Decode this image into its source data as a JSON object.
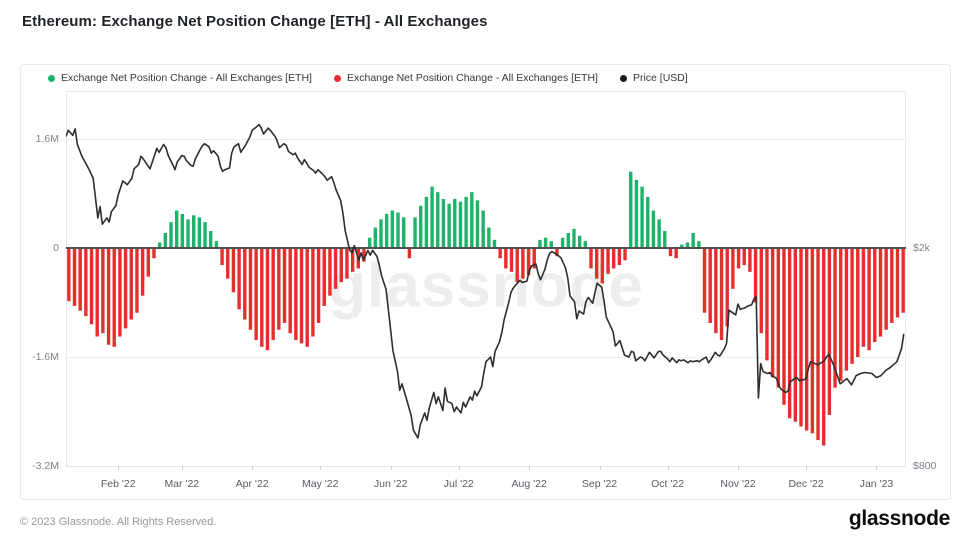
{
  "page": {
    "title": "Ethereum: Exchange Net Position Change [ETH] - All Exchanges",
    "watermark": "glassnode",
    "footer": {
      "copyright": "© 2023 Glassnode. All Rights Reserved.",
      "logo": "glassnode"
    }
  },
  "legend": {
    "items": [
      {
        "label": "Exchange Net Position Change - All Exchanges [ETH]",
        "color": "#1db36a"
      },
      {
        "label": "Exchange Net Position Change - All Exchanges [ETH]",
        "color": "#e62e2e"
      },
      {
        "label": "Price [USD]",
        "color": "#1a1a1a"
      }
    ]
  },
  "chart_data": {
    "type": "bar",
    "title": "Ethereum: Exchange Net Position Change [ETH] - All Exchanges",
    "bar_series_name": "Exchange Net Position Change - All Exchanges [ETH]",
    "bar_unit": "million ETH",
    "bar_positive_color": "#1db36a",
    "bar_negative_color": "#e62e2e",
    "price_series_name": "Price [USD]",
    "price_color": "#2e2e2e",
    "zero_line_color": "#515151",
    "grid_color": "#ededed",
    "axis_line_color": "#e3e3e3",
    "tick_color": "#c9ced6",
    "days_total": 370,
    "x_start_label_hint": "chart spans ~Jan 8 2022 to ~Jan 13 2023, daily bars",
    "left_axis": {
      "range": [
        -3.2,
        1.6
      ],
      "ticks": [
        {
          "label": "1.6M",
          "value": 1.6
        },
        {
          "label": "0",
          "value": 0
        },
        {
          "label": "-1.6M",
          "value": -1.6
        },
        {
          "label": "-3.2M",
          "value": -3.2
        }
      ]
    },
    "right_axis": {
      "scale": "log",
      "ticks": [
        {
          "label": "$2k",
          "value": 2000
        },
        {
          "label": "$800",
          "value": 800
        }
      ]
    },
    "x_axis": {
      "months": [
        {
          "label": "Feb '22",
          "day": 23
        },
        {
          "label": "Mar '22",
          "day": 51
        },
        {
          "label": "Apr '22",
          "day": 82
        },
        {
          "label": "May '22",
          "day": 112
        },
        {
          "label": "Jun '22",
          "day": 143
        },
        {
          "label": "Jul '22",
          "day": 173
        },
        {
          "label": "Aug '22",
          "day": 204
        },
        {
          "label": "Sep '22",
          "day": 235
        },
        {
          "label": "Oct '22",
          "day": 265
        },
        {
          "label": "Nov '22",
          "day": 296
        },
        {
          "label": "Dec '22",
          "day": 326
        },
        {
          "label": "Jan '23",
          "day": 357
        }
      ]
    },
    "bars_interval_days": 2.5,
    "bars": [
      -0.78,
      -0.85,
      -0.92,
      -1.0,
      -1.12,
      -1.3,
      -1.25,
      -1.42,
      -1.45,
      -1.3,
      -1.18,
      -1.05,
      -0.95,
      -0.7,
      -0.42,
      -0.15,
      0.08,
      0.22,
      0.38,
      0.55,
      0.5,
      0.42,
      0.48,
      0.45,
      0.38,
      0.25,
      0.1,
      -0.25,
      -0.45,
      -0.65,
      -0.9,
      -1.05,
      -1.2,
      -1.35,
      -1.45,
      -1.5,
      -1.35,
      -1.2,
      -1.1,
      -1.25,
      -1.35,
      -1.4,
      -1.45,
      -1.3,
      -1.1,
      -0.85,
      -0.7,
      -0.6,
      -0.5,
      -0.45,
      -0.35,
      -0.3,
      -0.2,
      0.15,
      0.3,
      0.42,
      0.5,
      0.55,
      0.52,
      0.45,
      -0.15,
      0.45,
      0.62,
      0.75,
      0.9,
      0.82,
      0.72,
      0.65,
      0.72,
      0.68,
      0.75,
      0.82,
      0.7,
      0.55,
      0.3,
      0.12,
      -0.15,
      -0.3,
      -0.35,
      -0.5,
      -0.45,
      -0.4,
      -0.3,
      0.12,
      0.15,
      0.1,
      -0.12,
      0.15,
      0.22,
      0.28,
      0.18,
      0.1,
      -0.3,
      -0.45,
      -0.52,
      -0.38,
      -0.3,
      -0.25,
      -0.18,
      1.12,
      1.0,
      0.9,
      0.75,
      0.55,
      0.42,
      0.25,
      -0.12,
      -0.15,
      0.05,
      0.08,
      0.22,
      0.1,
      -0.95,
      -1.1,
      -1.25,
      -1.35,
      -1.15,
      -0.6,
      -0.3,
      -0.25,
      -0.35,
      -0.8,
      -1.25,
      -1.65,
      -1.9,
      -2.05,
      -2.3,
      -2.5,
      -2.55,
      -2.62,
      -2.68,
      -2.72,
      -2.82,
      -2.9,
      -2.45,
      -2.05,
      -1.95,
      -1.8,
      -1.7,
      -1.6,
      -1.45,
      -1.5,
      -1.38,
      -1.3,
      -1.2,
      -1.1,
      -1.02,
      -0.95
    ],
    "price": [
      [
        0,
        3200
      ],
      [
        1,
        3280
      ],
      [
        3,
        3210
      ],
      [
        4,
        3300
      ],
      [
        5,
        3090
      ],
      [
        7,
        2940
      ],
      [
        10,
        2790
      ],
      [
        12,
        2680
      ],
      [
        14,
        2270
      ],
      [
        15,
        2380
      ],
      [
        16,
        2210
      ],
      [
        18,
        2270
      ],
      [
        19,
        2230
      ],
      [
        20,
        2330
      ],
      [
        22,
        2390
      ],
      [
        23,
        2500
      ],
      [
        25,
        2650
      ],
      [
        27,
        2610
      ],
      [
        29,
        2680
      ],
      [
        30,
        2790
      ],
      [
        32,
        2840
      ],
      [
        33,
        2940
      ],
      [
        34,
        2910
      ],
      [
        36,
        2830
      ],
      [
        37,
        2790
      ],
      [
        39,
        2950
      ],
      [
        40,
        3040
      ],
      [
        41,
        2990
      ],
      [
        43,
        3090
      ],
      [
        44,
        3050
      ],
      [
        45,
        2950
      ],
      [
        47,
        2840
      ],
      [
        48,
        2780
      ],
      [
        49,
        2870
      ],
      [
        51,
        2950
      ],
      [
        52,
        2940
      ],
      [
        53,
        2890
      ],
      [
        55,
        2830
      ],
      [
        56,
        2820
      ],
      [
        57,
        2910
      ],
      [
        59,
        3020
      ],
      [
        60,
        3070
      ],
      [
        61,
        3100
      ],
      [
        63,
        3060
      ],
      [
        64,
        2980
      ],
      [
        65,
        3010
      ],
      [
        67,
        2940
      ],
      [
        68,
        2820
      ],
      [
        69,
        2760
      ],
      [
        70,
        2780
      ],
      [
        72,
        2800
      ],
      [
        73,
        2980
      ],
      [
        74,
        3060
      ],
      [
        76,
        3100
      ],
      [
        77,
        2990
      ],
      [
        79,
        3080
      ],
      [
        81,
        3190
      ],
      [
        82,
        3280
      ],
      [
        84,
        3330
      ],
      [
        85,
        3360
      ],
      [
        86,
        3310
      ],
      [
        87,
        3230
      ],
      [
        88,
        3270
      ],
      [
        89,
        3310
      ],
      [
        90,
        3280
      ],
      [
        92,
        3200
      ],
      [
        93,
        3140
      ],
      [
        94,
        3050
      ],
      [
        96,
        3100
      ],
      [
        97,
        3080
      ],
      [
        98,
        3000
      ],
      [
        100,
        2960
      ],
      [
        101,
        2980
      ],
      [
        102,
        2920
      ],
      [
        104,
        2840
      ],
      [
        105,
        2900
      ],
      [
        106,
        2860
      ],
      [
        107,
        2810
      ],
      [
        109,
        2770
      ],
      [
        110,
        2740
      ],
      [
        111,
        2780
      ],
      [
        113,
        2730
      ],
      [
        114,
        2700
      ],
      [
        115,
        2660
      ],
      [
        117,
        2700
      ],
      [
        118,
        2630
      ],
      [
        119,
        2550
      ],
      [
        121,
        2440
      ],
      [
        122,
        2310
      ],
      [
        123,
        2150
      ],
      [
        125,
        1980
      ],
      [
        126,
        1960
      ],
      [
        127,
        2020
      ],
      [
        129,
        1900
      ],
      [
        130,
        1960
      ],
      [
        131,
        1900
      ],
      [
        133,
        1980
      ],
      [
        134,
        1940
      ],
      [
        135,
        1980
      ],
      [
        137,
        1930
      ],
      [
        138,
        1860
      ],
      [
        139,
        1780
      ],
      [
        141,
        1680
      ],
      [
        142,
        1540
      ],
      [
        143,
        1420
      ],
      [
        144,
        1300
      ],
      [
        146,
        1190
      ],
      [
        147,
        1100
      ],
      [
        148,
        1130
      ],
      [
        150,
        1060
      ],
      [
        152,
        990
      ],
      [
        153,
        930
      ],
      [
        155,
        900
      ],
      [
        156,
        950
      ],
      [
        158,
        1000
      ],
      [
        159,
        970
      ],
      [
        160,
        1020
      ],
      [
        162,
        1090
      ],
      [
        163,
        1040
      ],
      [
        164,
        1070
      ],
      [
        166,
        1010
      ],
      [
        167,
        1110
      ],
      [
        168,
        1050
      ],
      [
        170,
        1040
      ],
      [
        171,
        1005
      ],
      [
        172,
        1025
      ],
      [
        174,
        1000
      ],
      [
        175,
        1045
      ],
      [
        176,
        1025
      ],
      [
        178,
        1070
      ],
      [
        179,
        1055
      ],
      [
        180,
        1095
      ],
      [
        181,
        1075
      ],
      [
        183,
        1115
      ],
      [
        184,
        1180
      ],
      [
        185,
        1240
      ],
      [
        187,
        1265
      ],
      [
        188,
        1215
      ],
      [
        189,
        1295
      ],
      [
        191,
        1350
      ],
      [
        192,
        1405
      ],
      [
        193,
        1480
      ],
      [
        195,
        1590
      ],
      [
        196,
        1660
      ],
      [
        197,
        1690
      ],
      [
        199,
        1730
      ],
      [
        200,
        1745
      ],
      [
        201,
        1730
      ],
      [
        203,
        1740
      ],
      [
        204,
        1810
      ],
      [
        205,
        1855
      ],
      [
        207,
        1870
      ],
      [
        208,
        1795
      ],
      [
        209,
        1750
      ],
      [
        211,
        1830
      ],
      [
        212,
        1905
      ],
      [
        213,
        1955
      ],
      [
        214,
        1970
      ],
      [
        216,
        1950
      ],
      [
        217,
        1935
      ],
      [
        218,
        1920
      ],
      [
        220,
        1840
      ],
      [
        221,
        1765
      ],
      [
        222,
        1635
      ],
      [
        224,
        1595
      ],
      [
        225,
        1485
      ],
      [
        226,
        1535
      ],
      [
        228,
        1515
      ],
      [
        229,
        1595
      ],
      [
        230,
        1625
      ],
      [
        232,
        1585
      ],
      [
        233,
        1660
      ],
      [
        234,
        1725
      ],
      [
        236,
        1695
      ],
      [
        237,
        1595
      ],
      [
        238,
        1495
      ],
      [
        240,
        1435
      ],
      [
        241,
        1405
      ],
      [
        242,
        1325
      ],
      [
        244,
        1355
      ],
      [
        245,
        1315
      ],
      [
        246,
        1275
      ],
      [
        248,
        1265
      ],
      [
        249,
        1295
      ],
      [
        250,
        1290
      ],
      [
        251,
        1245
      ],
      [
        253,
        1265
      ],
      [
        254,
        1260
      ],
      [
        255,
        1245
      ],
      [
        257,
        1290
      ],
      [
        258,
        1275
      ],
      [
        259,
        1260
      ],
      [
        261,
        1295
      ],
      [
        262,
        1295
      ],
      [
        263,
        1275
      ],
      [
        265,
        1255
      ],
      [
        266,
        1240
      ],
      [
        267,
        1260
      ],
      [
        269,
        1235
      ],
      [
        270,
        1250
      ],
      [
        271,
        1245
      ],
      [
        272,
        1250
      ],
      [
        274,
        1235
      ],
      [
        275,
        1245
      ],
      [
        276,
        1240
      ],
      [
        278,
        1245
      ],
      [
        279,
        1240
      ],
      [
        280,
        1250
      ],
      [
        282,
        1265
      ],
      [
        283,
        1235
      ],
      [
        284,
        1250
      ],
      [
        286,
        1290
      ],
      [
        287,
        1275
      ],
      [
        288,
        1270
      ],
      [
        290,
        1310
      ],
      [
        291,
        1340
      ],
      [
        292,
        1540
      ],
      [
        294,
        1520
      ],
      [
        295,
        1510
      ],
      [
        296,
        1580
      ],
      [
        297,
        1545
      ],
      [
        299,
        1555
      ],
      [
        300,
        1565
      ],
      [
        302,
        1575
      ],
      [
        303,
        1615
      ],
      [
        304,
        1630
      ],
      [
        305,
        1065
      ],
      [
        306,
        1230
      ],
      [
        307,
        1190
      ],
      [
        309,
        1180
      ],
      [
        310,
        1185
      ],
      [
        311,
        1170
      ],
      [
        313,
        1155
      ],
      [
        314,
        1120
      ],
      [
        315,
        1105
      ],
      [
        317,
        1090
      ],
      [
        318,
        1095
      ],
      [
        319,
        1140
      ],
      [
        321,
        1155
      ],
      [
        322,
        1160
      ],
      [
        323,
        1145
      ],
      [
        325,
        1150
      ],
      [
        326,
        1155
      ],
      [
        327,
        1205
      ],
      [
        328,
        1240
      ],
      [
        330,
        1230
      ],
      [
        331,
        1225
      ],
      [
        332,
        1230
      ],
      [
        334,
        1245
      ],
      [
        335,
        1265
      ],
      [
        336,
        1280
      ],
      [
        338,
        1225
      ],
      [
        341,
        1130
      ],
      [
        344,
        1155
      ],
      [
        346,
        1125
      ],
      [
        348,
        1170
      ],
      [
        350,
        1180
      ],
      [
        352,
        1185
      ],
      [
        355,
        1180
      ],
      [
        357,
        1160
      ],
      [
        359,
        1170
      ],
      [
        361,
        1195
      ],
      [
        363,
        1210
      ],
      [
        366,
        1240
      ],
      [
        368,
        1310
      ],
      [
        369,
        1390
      ]
    ]
  }
}
